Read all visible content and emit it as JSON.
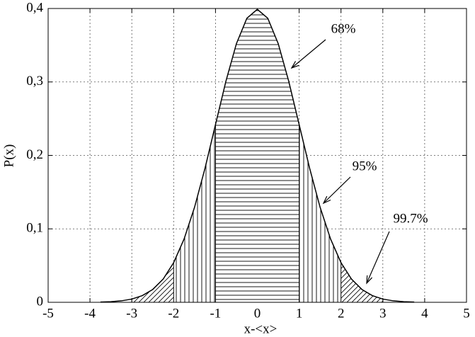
{
  "chart_data": {
    "type": "line",
    "xlabel": "x-<x>",
    "ylabel": "P(x)",
    "x": [
      -3.75,
      -3.5,
      -3.25,
      -3,
      -2.75,
      -2.5,
      -2.25,
      -2,
      -1.75,
      -1.5,
      -1.25,
      -1,
      -0.75,
      -0.5,
      -0.25,
      0,
      0.25,
      0.5,
      0.75,
      1,
      1.25,
      1.5,
      1.75,
      2,
      2.25,
      2.5,
      2.75,
      3,
      3.25,
      3.5,
      3.75
    ],
    "values": [
      0.0004,
      0.0009,
      0.002,
      0.0044,
      0.0091,
      0.0175,
      0.0317,
      0.054,
      0.0863,
      0.1295,
      0.1826,
      0.242,
      0.3011,
      0.3521,
      0.3867,
      0.3989,
      0.3867,
      0.3521,
      0.3011,
      0.242,
      0.1826,
      0.1295,
      0.0863,
      0.054,
      0.0317,
      0.0175,
      0.0091,
      0.0044,
      0.002,
      0.0009,
      0.0004
    ],
    "color": "#000000",
    "regions": [
      {
        "from": -3,
        "to": 3,
        "pattern": "diagonal"
      },
      {
        "from": -2,
        "to": 2,
        "pattern": "vertical"
      },
      {
        "from": -1,
        "to": 1,
        "pattern": "horizontal"
      }
    ],
    "annotations": [
      "68%",
      "95%",
      "99.7%"
    ],
    "xlim": [
      -5,
      5
    ],
    "xticks": [
      -5,
      -4,
      -3,
      -2,
      -1,
      0,
      1,
      2,
      3,
      4,
      5
    ],
    "ylim": [
      0,
      0.4
    ],
    "yticks": [
      0,
      {
        "value": 0.1,
        "label": "0,1"
      },
      {
        "value": 0.2,
        "label": "0,2"
      },
      {
        "value": 0.3,
        "label": "0,3"
      },
      {
        "value": 0.4,
        "label": "0,4"
      }
    ],
    "grid": true
  }
}
